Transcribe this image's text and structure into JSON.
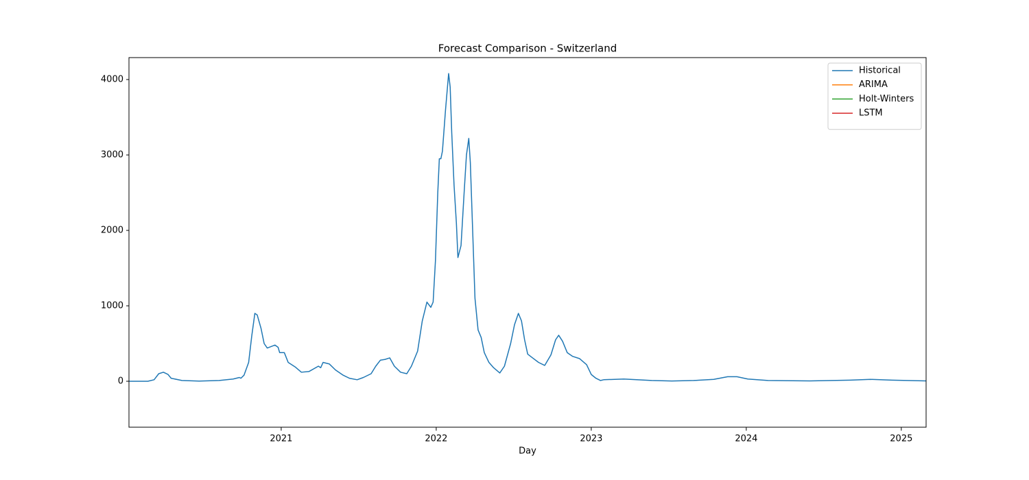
{
  "chart_data": {
    "type": "line",
    "title": "Forecast Comparison - Switzerland",
    "x_label": "Day",
    "xlim": [
      2020.018,
      2025.16
    ],
    "xticks": [
      2021,
      2022,
      2023,
      2024,
      2025
    ],
    "ylim": [
      -609,
      4291
    ],
    "yticks": [
      0,
      1000,
      2000,
      3000,
      4000
    ],
    "grid": false,
    "legend": "upper right",
    "series": [
      {
        "name": "Historical",
        "color": "#1f77b4",
        "x": [
          2020.018,
          2020.14,
          2020.18,
          2020.21,
          2020.24,
          2020.27,
          2020.29,
          2020.36,
          2020.47,
          2020.6,
          2020.69,
          2020.73,
          2020.74,
          2020.76,
          2020.79,
          2020.81,
          2020.83,
          2020.845,
          2020.87,
          2020.89,
          2020.91,
          2020.96,
          2020.98,
          2020.99,
          2021.02,
          2021.045,
          2021.09,
          2021.13,
          2021.18,
          2021.24,
          2021.255,
          2021.27,
          2021.31,
          2021.35,
          2021.4,
          2021.44,
          2021.49,
          2021.53,
          2021.58,
          2021.61,
          2021.64,
          2021.67,
          2021.7,
          2021.73,
          2021.77,
          2021.81,
          2021.84,
          2021.88,
          2021.91,
          2021.94,
          2021.965,
          2021.98,
          2021.995,
          2022.01,
          2022.02,
          2022.03,
          2022.04,
          2022.06,
          2022.08,
          2022.09,
          2022.1,
          2022.115,
          2022.13,
          2022.14,
          2022.16,
          2022.18,
          2022.195,
          2022.21,
          2022.22,
          2022.235,
          2022.25,
          2022.27,
          2022.29,
          2022.31,
          2022.34,
          2022.37,
          2022.41,
          2022.44,
          2022.48,
          2022.505,
          2022.53,
          2022.55,
          2022.57,
          2022.59,
          2022.615,
          2022.66,
          2022.7,
          2022.74,
          2022.77,
          2022.79,
          2022.815,
          2022.845,
          2022.88,
          2022.925,
          2022.97,
          2023.0,
          2023.03,
          2023.06,
          2023.08,
          2023.21,
          2023.39,
          2023.52,
          2023.66,
          2023.79,
          2023.88,
          2023.94,
          2024.01,
          2024.14,
          2024.41,
          2024.67,
          2024.8,
          2024.94,
          2025.16
        ],
        "values": [
          0,
          0,
          20,
          100,
          120,
          90,
          40,
          10,
          2,
          10,
          30,
          50,
          40,
          80,
          250,
          600,
          900,
          880,
          700,
          500,
          440,
          480,
          450,
          380,
          380,
          250,
          190,
          120,
          130,
          200,
          180,
          250,
          230,
          150,
          80,
          40,
          20,
          50,
          100,
          200,
          280,
          290,
          310,
          200,
          120,
          100,
          200,
          400,
          800,
          1050,
          980,
          1050,
          1600,
          2500,
          2950,
          2950,
          3050,
          3600,
          4080,
          3900,
          3300,
          2600,
          2100,
          1640,
          1800,
          2500,
          3000,
          3220,
          2900,
          2000,
          1100,
          680,
          580,
          380,
          250,
          180,
          110,
          200,
          500,
          750,
          900,
          800,
          550,
          360,
          320,
          250,
          210,
          350,
          550,
          610,
          530,
          380,
          330,
          300,
          220,
          90,
          40,
          10,
          20,
          30,
          10,
          3,
          10,
          25,
          60,
          60,
          30,
          10,
          5,
          15,
          25,
          15,
          5
        ]
      },
      {
        "name": "ARIMA",
        "color": "#ff7f0e",
        "x": [],
        "values": []
      },
      {
        "name": "Holt-Winters",
        "color": "#2ca02c",
        "x": [],
        "values": []
      },
      {
        "name": "LSTM",
        "color": "#d62728",
        "x": [],
        "values": []
      }
    ]
  }
}
